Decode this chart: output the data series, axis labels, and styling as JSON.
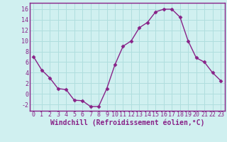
{
  "x": [
    0,
    1,
    2,
    3,
    4,
    5,
    6,
    7,
    8,
    9,
    10,
    11,
    12,
    13,
    14,
    15,
    16,
    17,
    18,
    19,
    20,
    21,
    22,
    23
  ],
  "y": [
    7.0,
    4.5,
    3.0,
    1.0,
    0.8,
    -1.2,
    -1.3,
    -2.4,
    -2.4,
    1.0,
    5.5,
    9.0,
    10.0,
    12.5,
    13.5,
    15.5,
    16.0,
    16.0,
    14.5,
    10.0,
    6.8,
    6.0,
    4.0,
    2.5
  ],
  "line_color": "#882288",
  "marker": "D",
  "marker_size": 2.5,
  "line_width": 1.0,
  "xlabel": "Windchill (Refroidissement éolien,°C)",
  "xlabel_fontsize": 7.0,
  "xlim": [
    -0.5,
    23.5
  ],
  "ylim": [
    -3.2,
    17.2
  ],
  "yticks": [
    -2,
    0,
    2,
    4,
    6,
    8,
    10,
    12,
    14,
    16
  ],
  "xticks": [
    0,
    1,
    2,
    3,
    4,
    5,
    6,
    7,
    8,
    9,
    10,
    11,
    12,
    13,
    14,
    15,
    16,
    17,
    18,
    19,
    20,
    21,
    22,
    23
  ],
  "tick_fontsize": 6.0,
  "bg_color": "#d0f0f0",
  "plot_bg_color": "#d0f0f0",
  "grid_color": "#b0dede",
  "spine_color": "#882288",
  "xlabel_color": "#882288",
  "tick_color": "#882288",
  "xlabel_bold": true
}
